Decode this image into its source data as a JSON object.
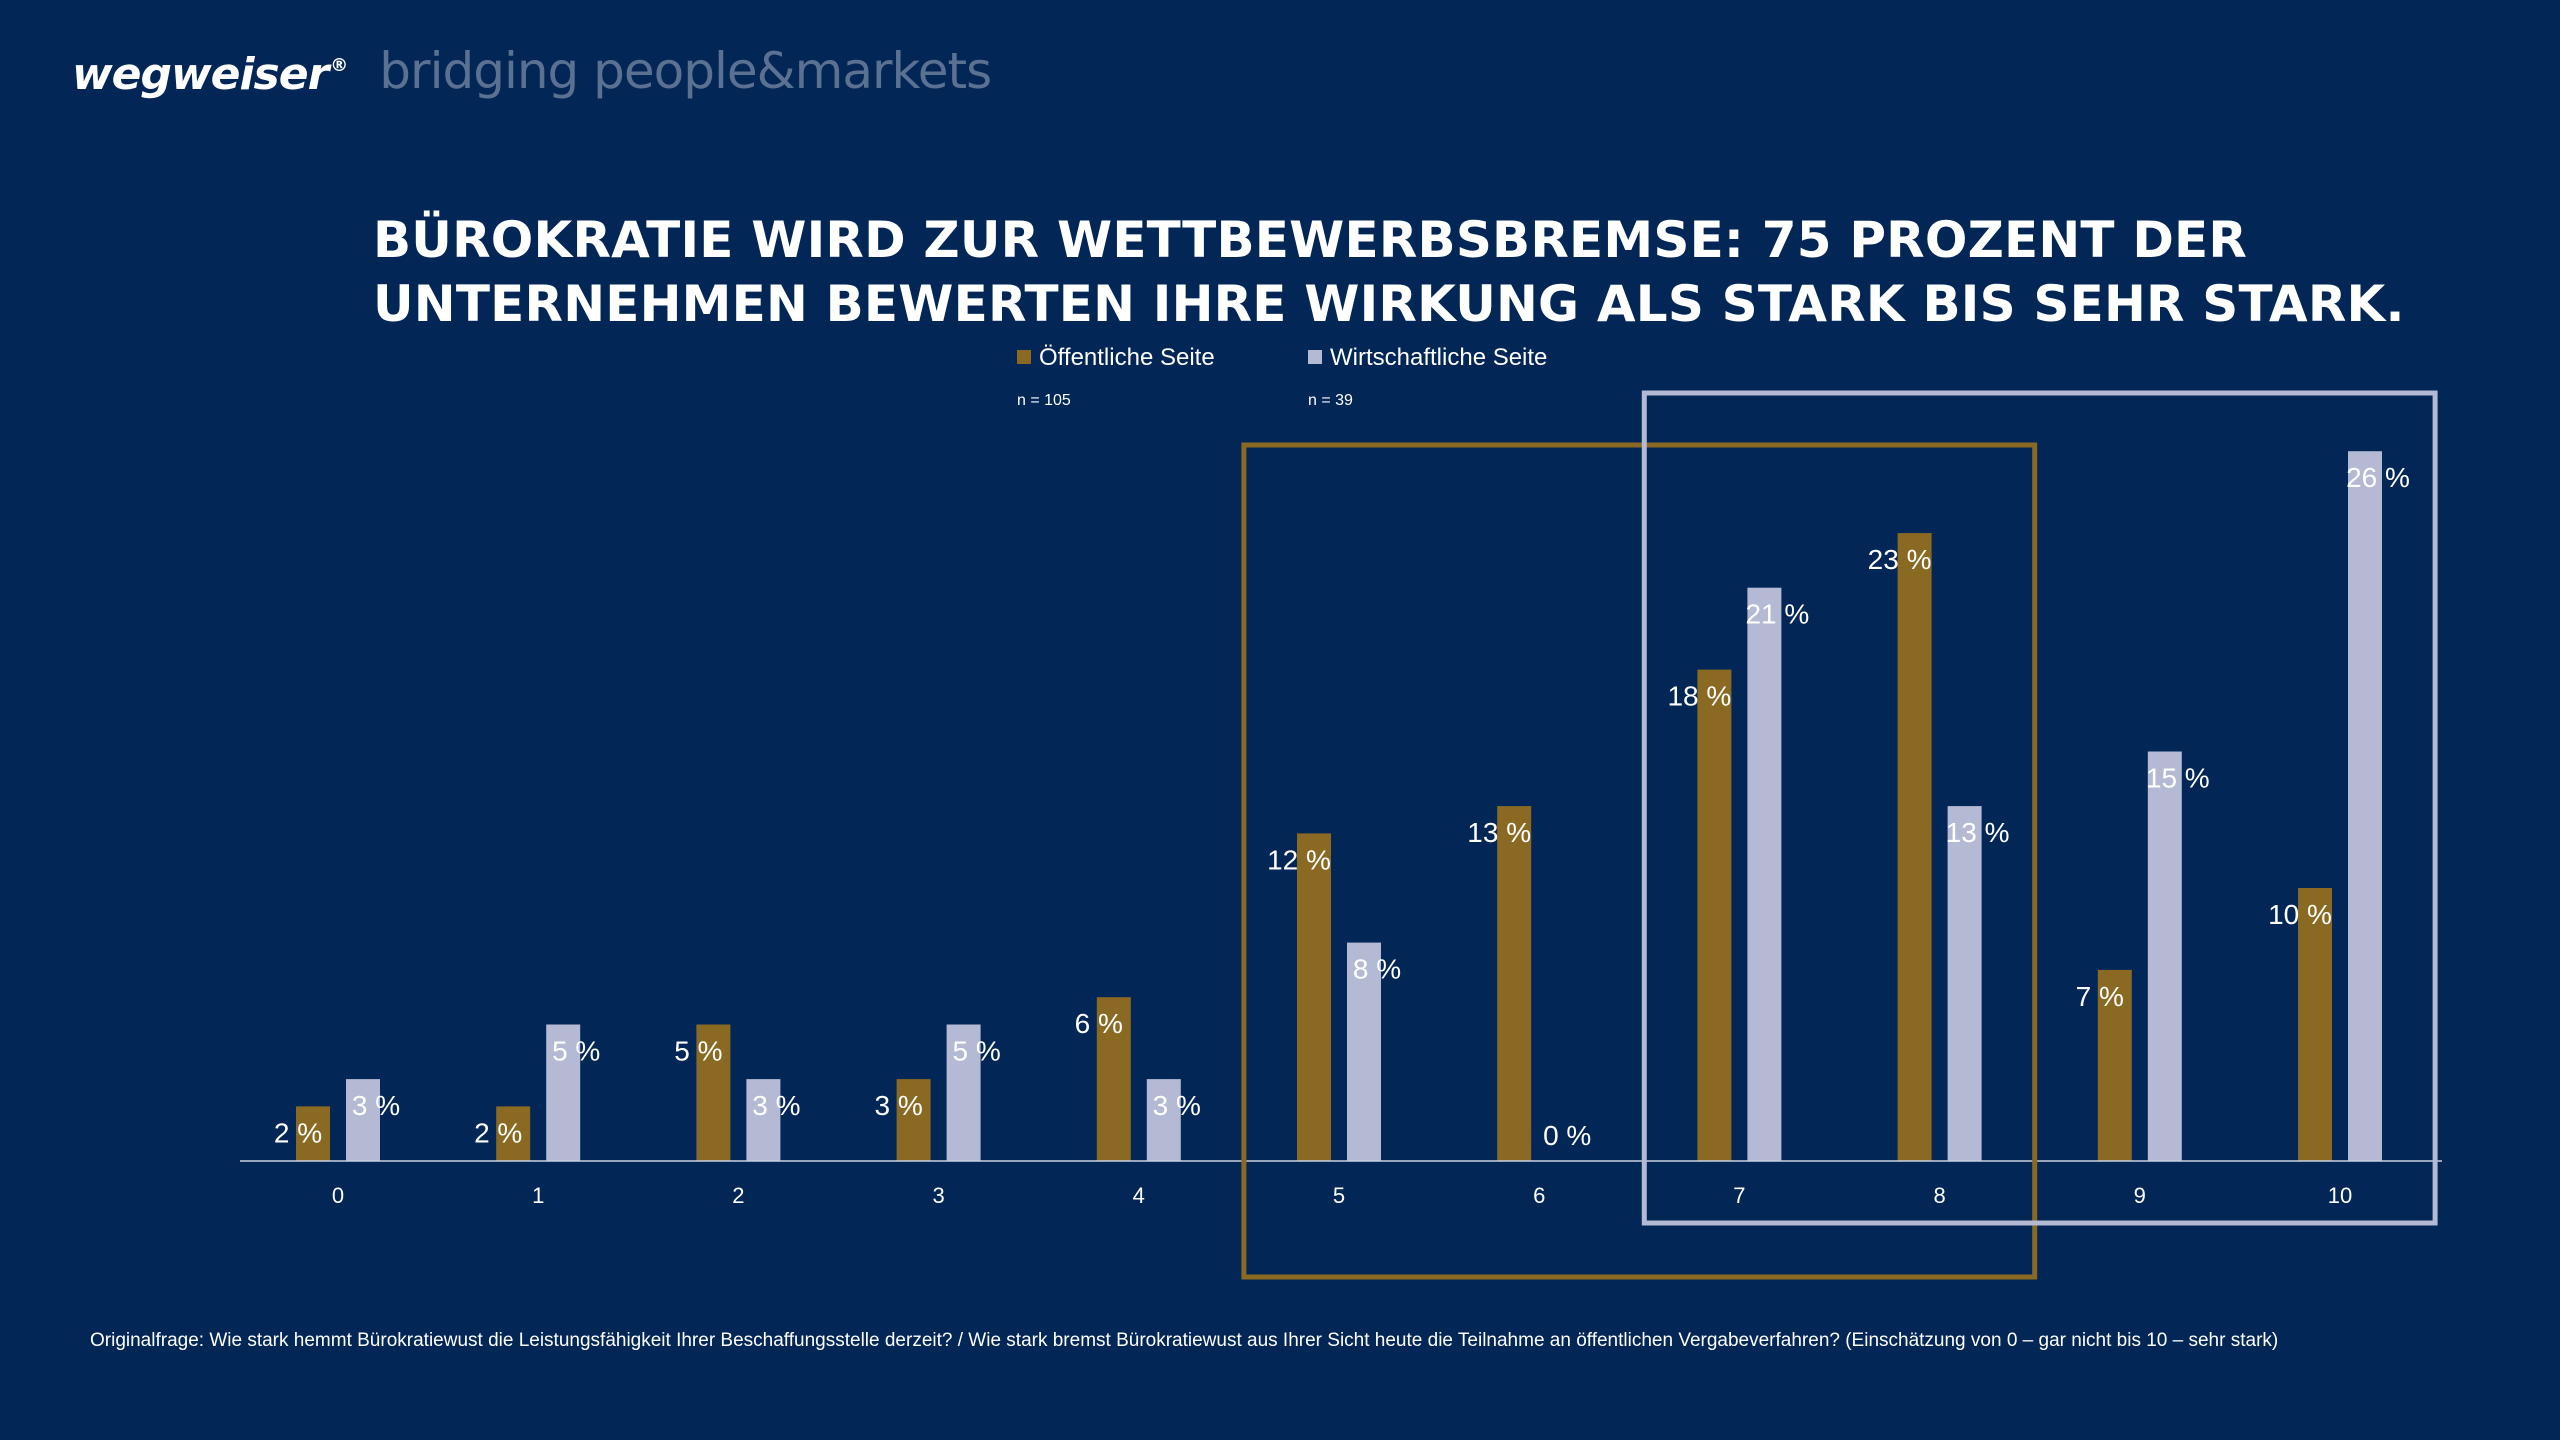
{
  "header": {
    "logo_text": "wegweiser",
    "logo_mark": "®",
    "tagline": "bridging people&markets"
  },
  "title": "BÜROKRATIE WIRD ZUR WETTBEWERBSBREMSE: 75 PROZENT DER UNTERNEHMEN BEWERTEN IHRE WIRKUNG ALS STARK BIS SEHR STARK.",
  "footnote": "Originalfrage: Wie stark hemmt Bürokratiewust die Leistungsfähigkeit Ihrer Beschaffungsstelle derzeit? / Wie stark bremst Bürokratiewust aus Ihrer Sicht heute die Teilnahme an öffentlichen Vergabeverfahren? (Einschätzung von 0 – gar nicht bis 10 – sehr stark)",
  "colors": {
    "background": "#022656",
    "series_public": "#8a6a22",
    "series_business": "#b4b9d4",
    "highlight_public": "#8a6a22",
    "highlight_business": "#b4b9d4"
  },
  "chart_data": {
    "type": "bar",
    "categories": [
      "0",
      "1",
      "2",
      "3",
      "4",
      "5",
      "6",
      "7",
      "8",
      "9",
      "10"
    ],
    "series": [
      {
        "name": "Öffentliche Seite",
        "n": "n = 105",
        "values": [
          2,
          2,
          5,
          3,
          6,
          12,
          13,
          18,
          23,
          7,
          10
        ]
      },
      {
        "name": "Wirtschaftliche Seite",
        "n": "n = 39",
        "values": [
          3,
          5,
          3,
          5,
          3,
          8,
          0,
          21,
          13,
          15,
          26
        ]
      }
    ],
    "data_label_suffix": " %",
    "ylim": [
      0,
      27
    ],
    "grid": false,
    "legend_position": "top-center",
    "highlights": [
      {
        "series": "Öffentliche Seite",
        "from": "5",
        "to": "8"
      },
      {
        "series": "Wirtschaftliche Seite",
        "from": "7",
        "to": "10"
      }
    ]
  }
}
